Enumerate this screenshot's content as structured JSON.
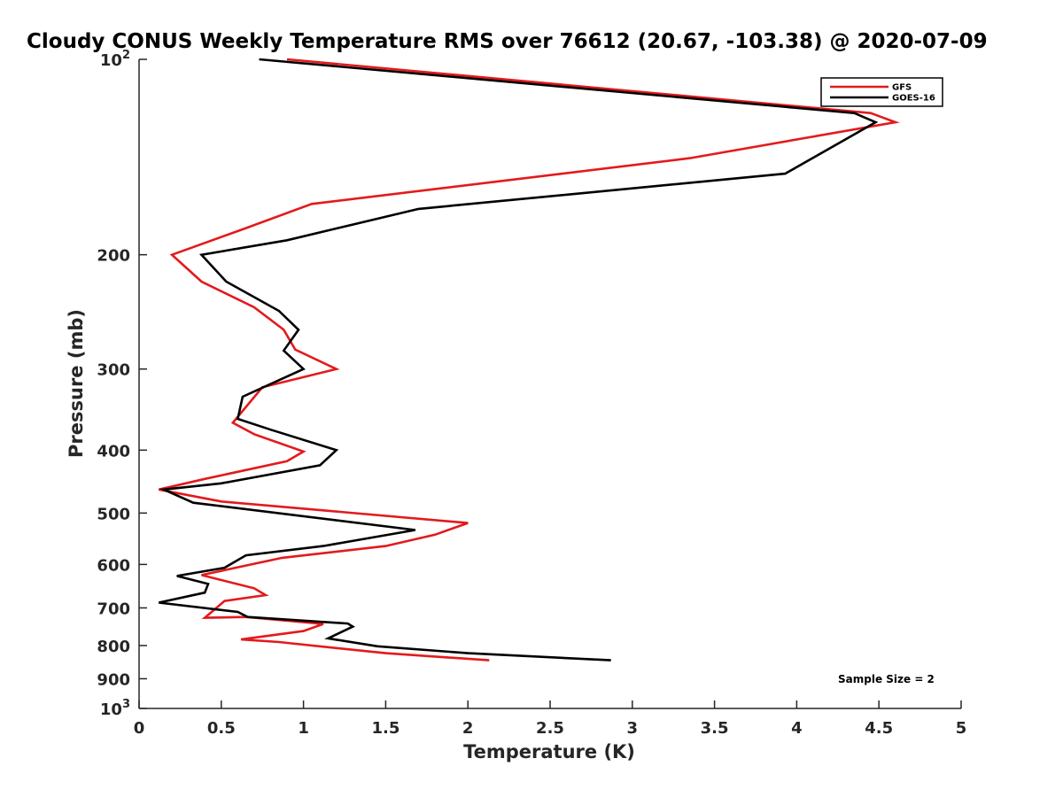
{
  "chart_data": {
    "type": "line",
    "title": "Cloudy CONUS Weekly Temperature RMS over 76612 (20.67, -103.38) @ 2020-07-09",
    "xlabel": "Temperature (K)",
    "ylabel": "Pressure (mb)",
    "xlim": [
      0,
      5
    ],
    "ylim": [
      100,
      1000
    ],
    "yscale": "log",
    "y_reversed": true,
    "xticks": [
      0,
      0.5,
      1,
      1.5,
      2,
      2.5,
      3,
      3.5,
      4,
      4.5,
      5
    ],
    "xtick_labels": [
      "0",
      "0.5",
      "1",
      "1.5",
      "2",
      "2.5",
      "3",
      "3.5",
      "4",
      "4.5",
      "5"
    ],
    "yticks": [
      100,
      200,
      300,
      400,
      500,
      600,
      700,
      800,
      900,
      1000
    ],
    "ytick_labels": [
      "10²",
      "200",
      "300",
      "400",
      "500",
      "600",
      "700",
      "800",
      "900",
      "10³"
    ],
    "legend": {
      "location": "top-right"
    },
    "annotation": "Sample Size = 2",
    "series": [
      {
        "name": "GFS",
        "color": "#e31a1c",
        "points": [
          [
            0.9,
            100
          ],
          [
            4.45,
            121
          ],
          [
            4.6,
            125
          ],
          [
            3.35,
            142
          ],
          [
            1.05,
            167
          ],
          [
            0.65,
            182
          ],
          [
            0.2,
            200
          ],
          [
            0.38,
            220
          ],
          [
            0.7,
            241
          ],
          [
            0.88,
            261
          ],
          [
            0.95,
            280
          ],
          [
            1.2,
            300
          ],
          [
            0.75,
            320
          ],
          [
            0.57,
            363
          ],
          [
            0.7,
            378
          ],
          [
            1.0,
            402
          ],
          [
            0.9,
            416
          ],
          [
            0.4,
            443
          ],
          [
            0.12,
            460
          ],
          [
            0.5,
            480
          ],
          [
            2.0,
            518
          ],
          [
            1.8,
            540
          ],
          [
            1.5,
            562
          ],
          [
            0.87,
            586
          ],
          [
            0.38,
            623
          ],
          [
            0.7,
            653
          ],
          [
            0.77,
            669
          ],
          [
            0.52,
            683
          ],
          [
            0.4,
            725
          ],
          [
            0.65,
            723
          ],
          [
            1.12,
            741
          ],
          [
            1.0,
            760
          ],
          [
            0.62,
            783
          ],
          [
            0.85,
            790
          ],
          [
            1.5,
            822
          ],
          [
            2.13,
            843
          ]
        ]
      },
      {
        "name": "GOES-16",
        "color": "#000000",
        "points": [
          [
            0.73,
            100
          ],
          [
            4.35,
            121
          ],
          [
            4.48,
            125
          ],
          [
            3.93,
            150
          ],
          [
            1.7,
            170
          ],
          [
            0.9,
            190
          ],
          [
            0.38,
            200
          ],
          [
            0.53,
            220
          ],
          [
            0.85,
            244
          ],
          [
            0.97,
            261
          ],
          [
            0.88,
            281
          ],
          [
            1.0,
            300
          ],
          [
            0.63,
            331
          ],
          [
            0.6,
            358
          ],
          [
            0.8,
            372
          ],
          [
            1.2,
            400
          ],
          [
            1.1,
            422
          ],
          [
            0.5,
            450
          ],
          [
            0.15,
            460
          ],
          [
            0.33,
            482
          ],
          [
            1.68,
            531
          ],
          [
            1.12,
            562
          ],
          [
            0.65,
            581
          ],
          [
            0.52,
            607
          ],
          [
            0.23,
            625
          ],
          [
            0.42,
            643
          ],
          [
            0.4,
            663
          ],
          [
            0.12,
            687
          ],
          [
            0.6,
            710
          ],
          [
            0.66,
            723
          ],
          [
            1.27,
            740
          ],
          [
            1.3,
            748
          ],
          [
            1.15,
            780
          ],
          [
            1.45,
            802
          ],
          [
            2.0,
            822
          ],
          [
            2.87,
            843
          ]
        ]
      }
    ]
  }
}
